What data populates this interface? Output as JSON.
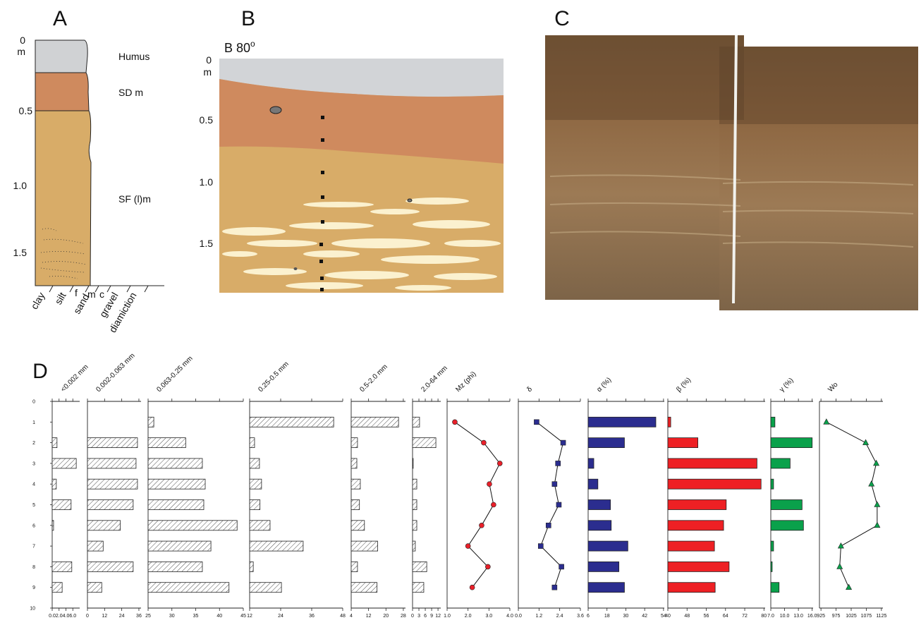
{
  "panel_a": {
    "label": "A",
    "depth_ticks": [
      "0",
      "m",
      "0.5",
      "1.0",
      "1.5"
    ],
    "layers": [
      "Humus",
      "SD m",
      "SF (l)m"
    ],
    "grain": [
      "clay",
      "silt",
      "f",
      "m",
      "c",
      "sand",
      "gravel",
      "diamiction"
    ]
  },
  "panel_b": {
    "label": "B",
    "title": "B 80",
    "title_sup": "o",
    "depth_ticks": [
      "0",
      "m",
      "0.5",
      "1.0",
      "1.5"
    ]
  },
  "panel_c": {
    "label": "C"
  },
  "panel_d": {
    "label": "D"
  },
  "chart_data": [
    {
      "type": "bar",
      "title": "<0.002 mm",
      "style": "hatched",
      "values": [
        null,
        1.4,
        7.0,
        1.2,
        5.5,
        0.4,
        null,
        5.7,
        2.9
      ],
      "xlim": [
        0,
        8
      ],
      "xticks": [
        {
          "value": 0,
          "label": "0.0"
        },
        {
          "value": 2,
          "label": "2.0"
        },
        {
          "value": 4,
          "label": "4.0"
        },
        {
          "value": 6,
          "label": "6.0"
        }
      ],
      "ylim": [
        0,
        10
      ],
      "yticks": [
        0,
        1,
        2,
        3,
        4,
        5,
        6,
        7,
        8,
        9,
        10
      ]
    },
    {
      "type": "bar",
      "title": "0.002-0.063 mm",
      "style": "hatched",
      "values": [
        null,
        35,
        34,
        35,
        32,
        23,
        11,
        32,
        10
      ],
      "xlim": [
        0,
        37.5
      ],
      "xticks": [
        0,
        12,
        24,
        36
      ]
    },
    {
      "type": "bar",
      "title": "0.063-0.25 mm",
      "style": "hatched",
      "values": [
        26.2,
        32.9,
        36.4,
        37,
        36.7,
        43.7,
        38.2,
        36.4,
        42
      ],
      "xlim": [
        25,
        45
      ],
      "xticks": [
        25,
        30,
        35,
        40,
        45
      ]
    },
    {
      "type": "bar",
      "title": "0.25-0.5 mm",
      "style": "hatched",
      "values": [
        44.5,
        13.9,
        15.8,
        16.6,
        16,
        19.9,
        32.7,
        13.4,
        24.3
      ],
      "xlim": [
        12,
        48
      ],
      "xticks": [
        12,
        24,
        36,
        48
      ]
    },
    {
      "type": "bar",
      "title": "0.5-2.0 mm",
      "style": "hatched",
      "values": [
        25.8,
        6.9,
        6.6,
        8.2,
        7.8,
        10.1,
        16.2,
        6.9,
        15.9
      ],
      "xlim": [
        4,
        29
      ],
      "xticks": [
        4,
        12,
        20,
        28
      ]
    },
    {
      "type": "bar",
      "title": "2.0-64 mm",
      "style": "hatched",
      "values": [
        3.3,
        11,
        0.3,
        2,
        2,
        2,
        1.3,
        6.7,
        5.3
      ],
      "xlim": [
        0,
        13.3
      ],
      "xticks": [
        0,
        3,
        6,
        9,
        12
      ]
    },
    {
      "type": "line",
      "title": "Mz (phi)",
      "color": "#e8202a",
      "marker": "circle",
      "values": [
        1.37,
        2.75,
        3.52,
        3.02,
        3.22,
        2.65,
        2.0,
        2.95,
        2.2
      ],
      "xlim": [
        1,
        4
      ],
      "xticks": [
        {
          "value": 1,
          "label": "1.0"
        },
        {
          "value": 2,
          "label": "2.0"
        },
        {
          "value": 3,
          "label": "3.0"
        },
        {
          "value": 4,
          "label": "4.0"
        }
      ]
    },
    {
      "type": "line",
      "title": "δ",
      "color": "#2b2d8f",
      "marker": "square",
      "values": [
        1.06,
        2.6,
        2.3,
        2.1,
        2.35,
        1.75,
        1.3,
        2.5,
        2.1
      ],
      "xlim": [
        0,
        3.6
      ],
      "xticks": [
        {
          "value": 0,
          "label": "0.0"
        },
        1.2,
        2.4,
        3.6
      ]
    },
    {
      "type": "bar",
      "title": "α (%)",
      "color": "#2b2d8f",
      "values": [
        49.1,
        29.1,
        9.6,
        12.2,
        20.2,
        20.7,
        31.3,
        25.6,
        29.1
      ],
      "xlim": [
        6,
        54.5
      ],
      "xticks": [
        6,
        18,
        30,
        42,
        54
      ]
    },
    {
      "type": "bar",
      "title": "β (%)",
      "color": "#ee2024",
      "values": [
        41.2,
        52.5,
        77.1,
        78.8,
        64.3,
        63.2,
        59.4,
        65.5,
        59.7
      ],
      "xlim": [
        40,
        80.5
      ],
      "xticks": [
        40,
        48,
        56,
        64,
        72,
        80
      ]
    },
    {
      "type": "bar",
      "title": "γ (%)",
      "color": "#0aa14b",
      "values": [
        7.9,
        16,
        11.2,
        7.6,
        13.8,
        14.1,
        7.6,
        7.3,
        8.8
      ],
      "xlim": [
        7,
        16.2
      ],
      "xticks": [
        {
          "value": 7,
          "label": "7.0"
        },
        {
          "value": 10,
          "label": "10.0"
        },
        {
          "value": 13,
          "label": "13.0"
        },
        {
          "value": 16,
          "label": "16.0"
        }
      ]
    },
    {
      "type": "line",
      "title": "Wo",
      "color": "#0aa14b",
      "marker": "triangle",
      "values": [
        943,
        1073,
        1108,
        1092,
        1111,
        1111,
        991,
        987,
        1017
      ],
      "xlim": [
        920,
        1130
      ],
      "xticks": [
        925,
        975,
        1025,
        1075,
        1125
      ]
    }
  ]
}
